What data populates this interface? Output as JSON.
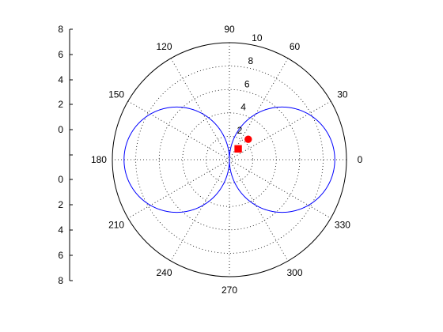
{
  "chart_data": {
    "type": "polar",
    "title": "",
    "radial_ticks": [
      "2",
      "4",
      "6",
      "8",
      "10"
    ],
    "radial_max": 10,
    "angle_ticks": [
      "0",
      "30",
      "60",
      "90",
      "120",
      "150",
      "180",
      "210",
      "240",
      "270",
      "300",
      "330"
    ],
    "grid": "dotted",
    "curve": {
      "description": "r = 9*|cos(theta)|",
      "amplitude": 9,
      "color": "#0000ff"
    },
    "markers": [
      {
        "shape": "circle",
        "r": 2.37,
        "theta_deg": 47.3,
        "color": "#ff0000"
      },
      {
        "shape": "square",
        "r": 1.19,
        "theta_deg": 51.0,
        "color": "#ff0000"
      }
    ],
    "left_axis": {
      "upper_ticks": [
        "8",
        "6",
        "4",
        "2",
        "0"
      ],
      "lower_ticks": [
        "0",
        "2",
        "4",
        "6",
        "8"
      ]
    }
  }
}
